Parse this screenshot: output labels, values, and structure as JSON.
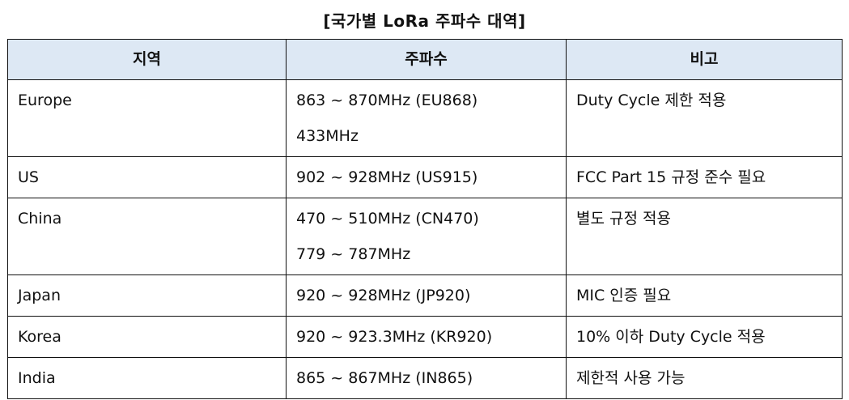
{
  "title": "[국가별 LoRa 주파수 대역]",
  "table": {
    "headers": [
      "지역",
      "주파수",
      "비고"
    ],
    "header_bg": "#dde8f4",
    "rows": [
      {
        "region": "Europe",
        "freq": [
          "863 ~ 870MHz (EU868)",
          "433MHz"
        ],
        "note": "Duty Cycle 제한 적용"
      },
      {
        "region": "US",
        "freq": [
          "902 ~ 928MHz (US915)"
        ],
        "note": "FCC Part 15 규정 준수 필요"
      },
      {
        "region": "China",
        "freq": [
          "470 ~ 510MHz (CN470)",
          "779 ~ 787MHz"
        ],
        "note": "별도 규정 적용"
      },
      {
        "region": "Japan",
        "freq": [
          "920 ~ 928MHz (JP920)"
        ],
        "note": "MIC 인증 필요"
      },
      {
        "region": "Korea",
        "freq": [
          "920 ~ 923.3MHz (KR920)"
        ],
        "note": "10% 이하 Duty Cycle 적용"
      },
      {
        "region": "India",
        "freq": [
          "865 ~ 867MHz (IN865)"
        ],
        "note": "제한적 사용 가능"
      }
    ]
  }
}
